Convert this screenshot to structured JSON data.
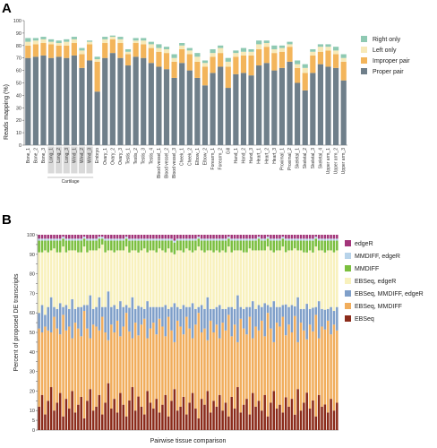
{
  "panel_a": {
    "letter": "A",
    "chart_data": {
      "type": "bar",
      "stacked": true,
      "ylabel": "Reads mapping (%)",
      "ylim": [
        0,
        100
      ],
      "yticks": [
        0,
        10,
        20,
        30,
        40,
        50,
        60,
        70,
        80,
        90,
        100
      ],
      "categories": [
        "Bone_1",
        "Bone_2",
        "Bone_3",
        "Long_1",
        "Long_2",
        "Long_3",
        "Wind_1",
        "Wind_2",
        "Wind_3",
        "Embryo",
        "Ovary_1",
        "Ovary_2",
        "Ovary_3",
        "Testis_1",
        "Testis_2",
        "Testis_3",
        "Testis_4",
        "Blood vessel_1",
        "Blood vessel_2",
        "Blood vessel_3",
        "Cheek_1",
        "Cheek_2",
        "Elbow_1",
        "Elbow_2",
        "Forearm_1",
        "Forearm_2",
        "Gill",
        "Hand_1",
        "Hand_2",
        "Hand_3",
        "Heart_1",
        "Heart_2",
        "Heart_3",
        "Proximal_1",
        "Proximal_2",
        "Skeletal_1",
        "Skeletal_2",
        "Skeletal_3",
        "Skeletal_4",
        "Upper arm_1",
        "Upper arm_2",
        "Upper arm_3"
      ],
      "highlighted_categories": [
        "Long_1",
        "Long_2",
        "Long_3",
        "Wind_1",
        "Wind_2",
        "Wind_3"
      ],
      "group_label": "Cartilage",
      "series": [
        {
          "name": "Proper pair",
          "color": "#6f7f8a",
          "values": [
            70,
            71,
            72,
            70,
            71,
            70,
            72,
            62,
            68,
            43,
            70,
            74,
            70,
            64,
            71,
            70,
            66,
            63,
            61,
            54,
            66,
            60,
            54,
            48,
            58,
            63,
            46,
            57,
            58,
            56,
            64,
            66,
            60,
            62,
            67,
            50,
            44,
            58,
            65,
            63,
            62,
            52
          ]
        },
        {
          "name": "Improper pair",
          "color": "#f3b55b",
          "values": [
            10,
            10,
            10,
            11,
            9,
            10,
            10,
            11,
            13,
            24,
            12,
            11,
            12,
            9,
            11,
            11,
            12,
            12,
            13,
            13,
            11,
            13,
            13,
            15,
            13,
            11,
            17,
            14,
            14,
            16,
            13,
            13,
            14,
            13,
            12,
            12,
            14,
            14,
            10,
            13,
            11,
            15
          ]
        },
        {
          "name": "Left only",
          "color": "#f7e9b8",
          "values": [
            3,
            3,
            3,
            2,
            2,
            3,
            3,
            3,
            2,
            2,
            3,
            2,
            3,
            2,
            2,
            3,
            3,
            3,
            3,
            3,
            3,
            3,
            4,
            3,
            3,
            4,
            4,
            3,
            3,
            3,
            4,
            3,
            3,
            3,
            2,
            3,
            4,
            3,
            4,
            3,
            3,
            3
          ]
        },
        {
          "name": "Right only",
          "color": "#8ec9b2",
          "values": [
            3,
            2,
            2,
            2,
            2,
            2,
            2,
            2,
            1,
            2,
            2,
            1,
            2,
            2,
            2,
            2,
            2,
            3,
            2,
            3,
            2,
            2,
            3,
            2,
            3,
            2,
            3,
            2,
            3,
            2,
            3,
            2,
            3,
            2,
            2,
            3,
            3,
            2,
            2,
            2,
            3,
            3
          ]
        }
      ],
      "legend_position": "right"
    }
  },
  "panel_b": {
    "letter": "B",
    "chart_data": {
      "type": "bar",
      "stacked": true,
      "ylabel": "Percent of proposed DE transcripts",
      "xlabel": "Pairwise tissue comparison",
      "ylim": [
        0,
        100
      ],
      "yticks": [
        0,
        5,
        10,
        15,
        20,
        25,
        30,
        35,
        40,
        45,
        50,
        55,
        60,
        65,
        70,
        75,
        80,
        85,
        90,
        95,
        100
      ],
      "x_count": 100,
      "series": [
        {
          "name": "EBSeq",
          "color": "#8b2b1a",
          "values": [
            12,
            18,
            8,
            15,
            22,
            10,
            14,
            19,
            7,
            16,
            11,
            20,
            9,
            13,
            17,
            6,
            15,
            21,
            10,
            12,
            18,
            8,
            14,
            24,
            11,
            16,
            9,
            19,
            13,
            7,
            15,
            22,
            10,
            17,
            12,
            8,
            20,
            14,
            11,
            16,
            9,
            13,
            18,
            7,
            15,
            21,
            10,
            12,
            17,
            8,
            14,
            19,
            11,
            6,
            16,
            13,
            20,
            9,
            15,
            12,
            18,
            10,
            14,
            7,
            17,
            11,
            22,
            9,
            13,
            16,
            8,
            19,
            12,
            15,
            10,
            18,
            7,
            14,
            20,
            11,
            13,
            9,
            17,
            12,
            16,
            8,
            21,
            10,
            14,
            19,
            11,
            15,
            7,
            18,
            12,
            13,
            9,
            16,
            10,
            14
          ]
        },
        {
          "name": "EBSeq, MMDIFF",
          "color": "#f1ad5c",
          "values": [
            40,
            32,
            45,
            36,
            28,
            48,
            38,
            30,
            52,
            35,
            42,
            27,
            46,
            39,
            31,
            55,
            37,
            26,
            44,
            41,
            33,
            50,
            36,
            22,
            43,
            34,
            47,
            29,
            40,
            53,
            35,
            25,
            45,
            31,
            42,
            49,
            27,
            38,
            44,
            33,
            48,
            40,
            30,
            51,
            36,
            24,
            46,
            41,
            32,
            50,
            38,
            28,
            43,
            54,
            34,
            39,
            26,
            47,
            35,
            42,
            29,
            45,
            37,
            52,
            31,
            43,
            23,
            48,
            39,
            33,
            50,
            28,
            41,
            36,
            46,
            30,
            53,
            38,
            25,
            44,
            40,
            49,
            32,
            42,
            34,
            51,
            24,
            45,
            37,
            27,
            43,
            35,
            52,
            29,
            41,
            38,
            47,
            33,
            44,
            37
          ]
        },
        {
          "name": "EBSeq, MMDIFF, edgeR",
          "color": "#7f9fc9",
          "values": [
            8,
            14,
            6,
            12,
            18,
            5,
            10,
            16,
            4,
            13,
            9,
            20,
            7,
            11,
            15,
            3,
            12,
            22,
            8,
            10,
            17,
            5,
            13,
            25,
            9,
            14,
            6,
            18,
            10,
            4,
            12,
            21,
            7,
            15,
            9,
            5,
            19,
            11,
            8,
            14,
            6,
            10,
            16,
            4,
            12,
            20,
            7,
            9,
            15,
            5,
            11,
            18,
            8,
            3,
            14,
            10,
            22,
            6,
            12,
            9,
            17,
            7,
            11,
            4,
            15,
            8,
            24,
            6,
            10,
            14,
            5,
            19,
            9,
            13,
            7,
            17,
            4,
            11,
            21,
            8,
            10,
            6,
            16,
            9,
            14,
            5,
            23,
            7,
            11,
            18,
            8,
            12,
            4,
            19,
            9,
            10,
            6,
            14,
            7,
            12
          ]
        },
        {
          "name": "EBSeq, edgeR",
          "color": "#f8f1bd",
          "values": [
            31,
            27,
            33,
            28,
            24,
            30,
            29,
            26,
            31,
            27,
            30,
            25,
            30,
            28,
            28,
            30,
            27,
            23,
            30,
            29,
            25,
            32,
            28,
            21,
            29,
            27,
            30,
            26,
            29,
            30,
            28,
            24,
            30,
            27,
            29,
            31,
            25,
            29,
            29,
            28,
            30,
            29,
            27,
            31,
            28,
            25,
            29,
            30,
            27,
            30,
            29,
            26,
            30,
            31,
            28,
            29,
            24,
            30,
            29,
            29,
            27,
            30,
            29,
            31,
            28,
            30,
            23,
            29,
            29,
            28,
            30,
            26,
            30,
            28,
            29,
            27,
            30,
            29,
            25,
            29,
            29,
            30,
            27,
            29,
            28,
            30,
            24,
            30,
            29,
            26,
            30,
            28,
            31,
            26,
            30,
            29,
            30,
            29,
            30,
            29
          ]
        },
        {
          "name": "MMDIFF",
          "color": "#7bbf3f",
          "values": [
            6,
            6,
            5,
            6,
            5,
            4,
            6,
            6,
            4,
            6,
            5,
            5,
            5,
            6,
            6,
            4,
            6,
            5,
            5,
            5,
            5,
            3,
            6,
            5,
            5,
            6,
            5,
            5,
            5,
            4,
            6,
            5,
            5,
            6,
            5,
            4,
            6,
            5,
            5,
            6,
            4,
            5,
            6,
            4,
            6,
            6,
            5,
            5,
            6,
            4,
            5,
            6,
            5,
            4,
            5,
            6,
            5,
            5,
            6,
            5,
            6,
            5,
            6,
            4,
            6,
            5,
            5,
            5,
            6,
            6,
            4,
            5,
            5,
            6,
            5,
            5,
            4,
            5,
            6,
            5,
            5,
            4,
            6,
            5,
            5,
            4,
            5,
            5,
            6,
            6,
            5,
            6,
            4,
            5,
            5,
            6,
            5,
            5,
            6,
            5
          ]
        },
        {
          "name": "MMDIFF, edgeR",
          "color": "#b7d3ea",
          "values": [
            1,
            1,
            1,
            1,
            1,
            1,
            1,
            1,
            1,
            1,
            1,
            1,
            1,
            1,
            1,
            1,
            1,
            1,
            1,
            1,
            1,
            1,
            1,
            1,
            1,
            1,
            1,
            1,
            1,
            1,
            1,
            1,
            1,
            1,
            1,
            1,
            1,
            1,
            1,
            1,
            1,
            1,
            1,
            1,
            1,
            1,
            1,
            1,
            1,
            1,
            1,
            1,
            1,
            1,
            1,
            1,
            1,
            1,
            1,
            1,
            1,
            1,
            1,
            1,
            1,
            1,
            1,
            1,
            1,
            1,
            1,
            1,
            1,
            1,
            1,
            1,
            1,
            1,
            1,
            1,
            1,
            1,
            1,
            1,
            1,
            1,
            1,
            1,
            1,
            1,
            1,
            1,
            1,
            1,
            1,
            1,
            1,
            1,
            1,
            1
          ]
        },
        {
          "name": "edgeR",
          "color": "#a3357a",
          "values": [
            2,
            2,
            2,
            2,
            2,
            2,
            2,
            2,
            1,
            2,
            2,
            2,
            2,
            2,
            2,
            1,
            2,
            2,
            2,
            2,
            1,
            1,
            2,
            2,
            2,
            2,
            2,
            2,
            2,
            1,
            2,
            2,
            2,
            2,
            2,
            2,
            2,
            2,
            2,
            2,
            2,
            2,
            2,
            2,
            2,
            3,
            2,
            2,
            2,
            2,
            2,
            2,
            2,
            1,
            2,
            2,
            2,
            2,
            2,
            2,
            2,
            2,
            2,
            1,
            2,
            2,
            2,
            2,
            2,
            2,
            2,
            2,
            2,
            1,
            2,
            2,
            1,
            2,
            2,
            2,
            2,
            1,
            2,
            2,
            2,
            2,
            2,
            2,
            2,
            2,
            2,
            2,
            1,
            2,
            2,
            2,
            2,
            2,
            2,
            2
          ]
        }
      ],
      "legend_order": [
        "edgeR",
        "MMDIFF, edgeR",
        "MMDIFF",
        "EBSeq, edgeR",
        "EBSeq, MMDIFF, edgeR",
        "EBSeq, MMDIFF",
        "EBSeq"
      ],
      "legend_position": "right"
    }
  }
}
